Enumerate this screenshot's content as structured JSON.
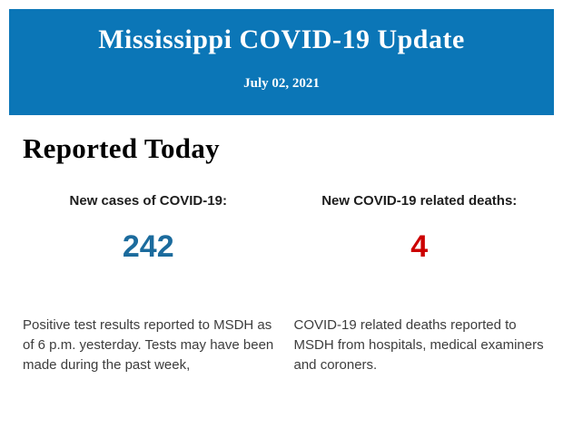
{
  "header": {
    "title": "Mississippi COVID-19 Update",
    "date": "July 02, 2021",
    "background_color": "#0b76b7",
    "text_color": "#ffffff"
  },
  "main": {
    "section_title": "Reported Today",
    "stats": [
      {
        "label": "New cases of COVID-19:",
        "value": "242",
        "value_color": "#1b6b9d",
        "description": "Positive test results reported to MSDH as of 6 p.m. yesterday. Tests may have been made during the past week,"
      },
      {
        "label": "New COVID-19 related deaths:",
        "value": "4",
        "value_color": "#cc0000",
        "description": "COVID-19 related deaths reported to MSDH from hospitals, medical examiners and coroners."
      }
    ]
  }
}
